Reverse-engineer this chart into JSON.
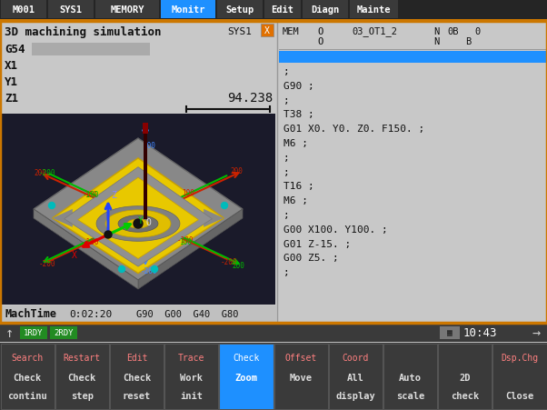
{
  "title_bar": {
    "tabs": [
      "M001",
      "SYS1",
      "MEMORY",
      "Monitr",
      "Setup",
      "Edit",
      "Diagn",
      "Mainte"
    ],
    "active_tab": "Monitr",
    "bg_color": "#252525",
    "active_color": "#1e90ff",
    "border_color": "#cc7700"
  },
  "main_bg": "#c8c8c8",
  "left_panel": {
    "title": "3D machining simulation",
    "fields": [
      "G54",
      "X1",
      "Y1",
      "Z1"
    ],
    "value": "94.238",
    "machtime_label": "MachTime",
    "machtime_value": "0:02:20",
    "gcodes": "G90 G00 G40 G80",
    "sim_bg": "#1a1a2a"
  },
  "right_panel": {
    "header1": [
      "MEM",
      "O",
      "03_OT1_2",
      "N",
      "0B",
      "0"
    ],
    "header2": [
      "O",
      "N",
      "B"
    ],
    "highlight_color": "#1e90ff",
    "code_lines": [
      ";",
      "G90 ;",
      ";",
      "T38 ;",
      "G01 X0. Y0. Z0. F150. ;",
      "M6 ;",
      ";",
      ";",
      "T16 ;",
      "M6 ;",
      ";",
      "G00 X100. Y100. ;",
      "G01 Z-15. ;",
      "G00 Z5. ;",
      ";"
    ]
  },
  "status_bar": {
    "bg_color": "#3a3a3a",
    "rdy1_bg": "#228b22",
    "rdy2_bg": "#228b22",
    "rdy1_text": "1RDY",
    "rdy2_text": "2RDY",
    "time": "10:43"
  },
  "bottom_bar": {
    "bg_color": "#3a3a3a",
    "btn_top": [
      "Search",
      "Restart",
      "Edit",
      "Trace",
      "Check",
      "Offset",
      "Coord",
      "",
      "",
      "Dsp.Chg"
    ],
    "btn_mid": [
      "Check",
      "Check",
      "Check",
      "Work",
      "Zoom",
      "Move",
      "All",
      "Auto",
      "2D",
      ""
    ],
    "btn_bot": [
      "continu",
      "step",
      "reset",
      "init",
      "",
      "",
      "display",
      "scale",
      "check",
      "Close"
    ],
    "active_idx": 4
  }
}
